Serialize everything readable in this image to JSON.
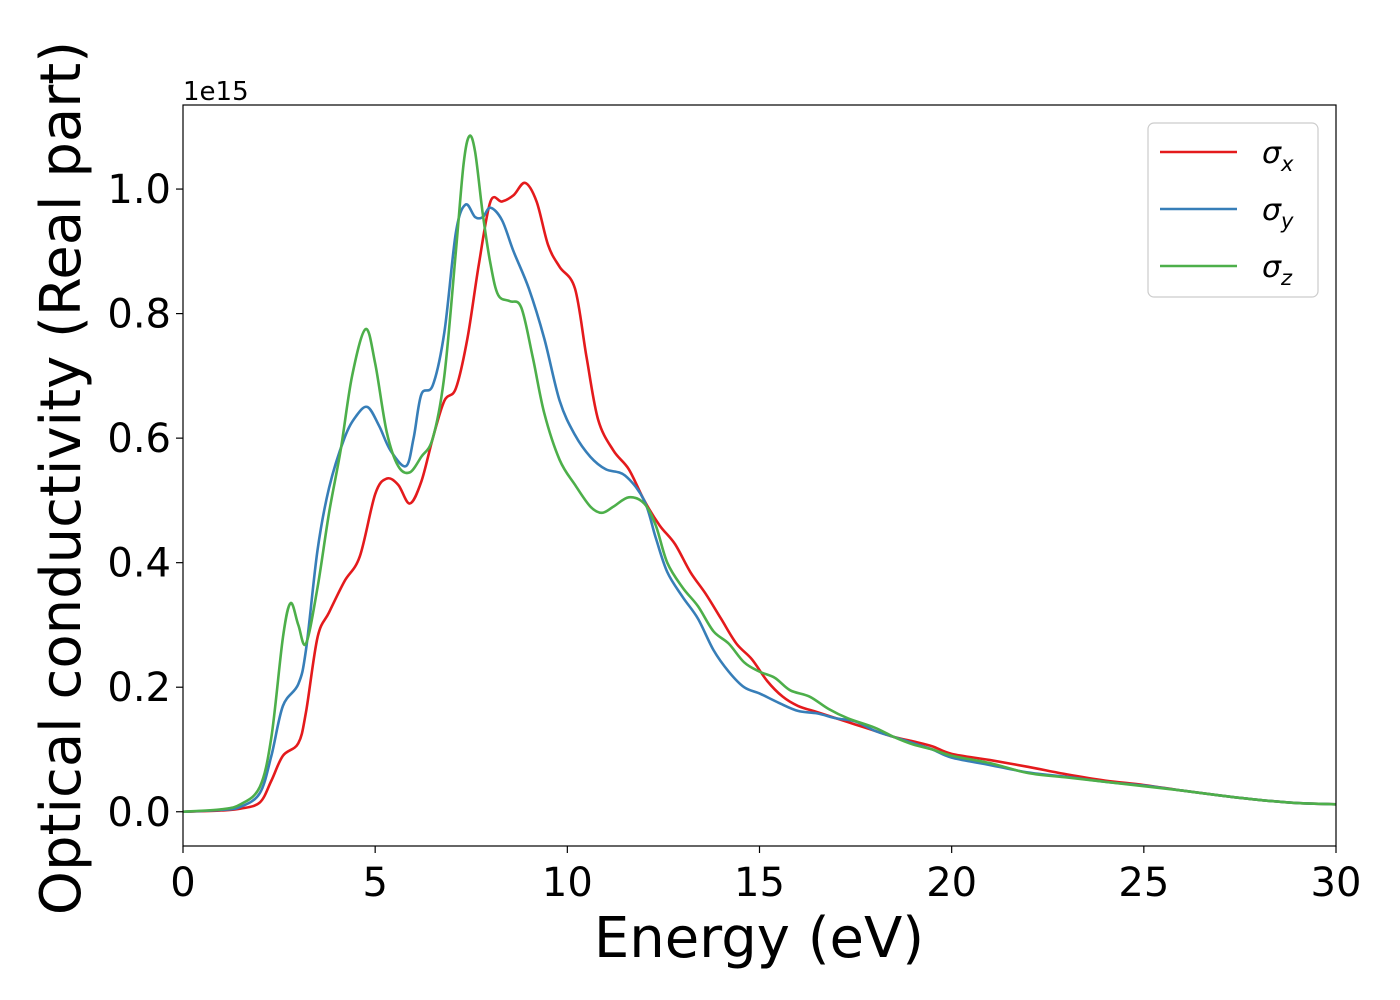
{
  "chart_data": {
    "type": "line",
    "title": "",
    "xlabel": "Energy (eV)",
    "ylabel": "Optical conductivity (Real part)",
    "y_offset_text": "1e15",
    "xlim": [
      0,
      30
    ],
    "ylim": [
      -0.055,
      1.135
    ],
    "xticks": [
      0,
      5,
      10,
      15,
      20,
      25,
      30
    ],
    "xtick_labels": [
      "0",
      "5",
      "10",
      "15",
      "20",
      "25",
      "30"
    ],
    "yticks": [
      0.0,
      0.2,
      0.4,
      0.6,
      0.8,
      1.0
    ],
    "ytick_labels": [
      "0.0",
      "0.2",
      "0.4",
      "0.6",
      "0.8",
      "1.0"
    ],
    "grid": false,
    "legend_position": "top-right",
    "series": [
      {
        "name": "σx",
        "legend_symbol": "σ",
        "legend_subscript": "x",
        "color": "#e41a1c",
        "points": [
          [
            0,
            0
          ],
          [
            1,
            0.002
          ],
          [
            1.5,
            0.005
          ],
          [
            2,
            0.015
          ],
          [
            2.3,
            0.05
          ],
          [
            2.6,
            0.09
          ],
          [
            3.0,
            0.11
          ],
          [
            3.2,
            0.16
          ],
          [
            3.5,
            0.28
          ],
          [
            3.8,
            0.32
          ],
          [
            4.2,
            0.37
          ],
          [
            4.6,
            0.41
          ],
          [
            5.0,
            0.51
          ],
          [
            5.3,
            0.535
          ],
          [
            5.6,
            0.525
          ],
          [
            5.9,
            0.495
          ],
          [
            6.2,
            0.53
          ],
          [
            6.5,
            0.6
          ],
          [
            6.8,
            0.66
          ],
          [
            7.1,
            0.68
          ],
          [
            7.4,
            0.76
          ],
          [
            7.7,
            0.88
          ],
          [
            8.0,
            0.98
          ],
          [
            8.3,
            0.98
          ],
          [
            8.6,
            0.99
          ],
          [
            8.9,
            1.01
          ],
          [
            9.2,
            0.98
          ],
          [
            9.5,
            0.91
          ],
          [
            9.8,
            0.875
          ],
          [
            10.2,
            0.84
          ],
          [
            10.5,
            0.73
          ],
          [
            10.8,
            0.63
          ],
          [
            11.2,
            0.58
          ],
          [
            11.6,
            0.55
          ],
          [
            12.0,
            0.5
          ],
          [
            12.4,
            0.46
          ],
          [
            12.8,
            0.43
          ],
          [
            13.2,
            0.385
          ],
          [
            13.6,
            0.35
          ],
          [
            14.0,
            0.31
          ],
          [
            14.4,
            0.27
          ],
          [
            14.8,
            0.245
          ],
          [
            15.2,
            0.21
          ],
          [
            15.6,
            0.185
          ],
          [
            16.0,
            0.17
          ],
          [
            16.5,
            0.16
          ],
          [
            17.0,
            0.15
          ],
          [
            17.5,
            0.14
          ],
          [
            18.0,
            0.13
          ],
          [
            18.5,
            0.12
          ],
          [
            19.0,
            0.113
          ],
          [
            19.5,
            0.105
          ],
          [
            20.0,
            0.093
          ],
          [
            21.0,
            0.083
          ],
          [
            22.0,
            0.072
          ],
          [
            23.0,
            0.06
          ],
          [
            24.0,
            0.05
          ],
          [
            25.0,
            0.043
          ],
          [
            26.0,
            0.034
          ],
          [
            27.0,
            0.026
          ],
          [
            28.0,
            0.019
          ],
          [
            29.0,
            0.014
          ],
          [
            30.0,
            0.012
          ]
        ]
      },
      {
        "name": "σy",
        "legend_symbol": "σ",
        "legend_subscript": "y",
        "color": "#377eb8",
        "points": [
          [
            0,
            0
          ],
          [
            1,
            0.003
          ],
          [
            1.5,
            0.008
          ],
          [
            2,
            0.03
          ],
          [
            2.3,
            0.09
          ],
          [
            2.6,
            0.17
          ],
          [
            3.0,
            0.205
          ],
          [
            3.2,
            0.26
          ],
          [
            3.5,
            0.42
          ],
          [
            3.8,
            0.52
          ],
          [
            4.2,
            0.6
          ],
          [
            4.5,
            0.635
          ],
          [
            4.8,
            0.65
          ],
          [
            5.1,
            0.62
          ],
          [
            5.4,
            0.58
          ],
          [
            5.8,
            0.555
          ],
          [
            6.0,
            0.6
          ],
          [
            6.2,
            0.67
          ],
          [
            6.5,
            0.685
          ],
          [
            6.8,
            0.77
          ],
          [
            7.1,
            0.93
          ],
          [
            7.35,
            0.975
          ],
          [
            7.6,
            0.955
          ],
          [
            7.8,
            0.955
          ],
          [
            8.0,
            0.97
          ],
          [
            8.3,
            0.95
          ],
          [
            8.6,
            0.9
          ],
          [
            9.0,
            0.84
          ],
          [
            9.4,
            0.76
          ],
          [
            9.8,
            0.66
          ],
          [
            10.2,
            0.605
          ],
          [
            10.6,
            0.57
          ],
          [
            11.0,
            0.55
          ],
          [
            11.5,
            0.54
          ],
          [
            12.0,
            0.5
          ],
          [
            12.3,
            0.44
          ],
          [
            12.6,
            0.385
          ],
          [
            13.0,
            0.345
          ],
          [
            13.4,
            0.31
          ],
          [
            13.8,
            0.26
          ],
          [
            14.2,
            0.225
          ],
          [
            14.6,
            0.2
          ],
          [
            15.0,
            0.19
          ],
          [
            15.5,
            0.175
          ],
          [
            16.0,
            0.162
          ],
          [
            16.5,
            0.158
          ],
          [
            17.0,
            0.15
          ],
          [
            17.5,
            0.145
          ],
          [
            18.0,
            0.13
          ],
          [
            18.5,
            0.12
          ],
          [
            19.0,
            0.11
          ],
          [
            19.5,
            0.1
          ],
          [
            20.0,
            0.087
          ],
          [
            21.0,
            0.075
          ],
          [
            22.0,
            0.063
          ],
          [
            23.0,
            0.056
          ],
          [
            24.0,
            0.048
          ],
          [
            25.0,
            0.042
          ],
          [
            26.0,
            0.034
          ],
          [
            27.0,
            0.026
          ],
          [
            28.0,
            0.019
          ],
          [
            29.0,
            0.014
          ],
          [
            30.0,
            0.012
          ]
        ]
      },
      {
        "name": "σz",
        "legend_symbol": "σ",
        "legend_subscript": "z",
        "color": "#4daf4a",
        "points": [
          [
            0,
            0
          ],
          [
            1,
            0.004
          ],
          [
            1.5,
            0.012
          ],
          [
            2,
            0.04
          ],
          [
            2.3,
            0.12
          ],
          [
            2.6,
            0.28
          ],
          [
            2.8,
            0.335
          ],
          [
            3.0,
            0.3
          ],
          [
            3.2,
            0.27
          ],
          [
            3.5,
            0.36
          ],
          [
            3.8,
            0.48
          ],
          [
            4.1,
            0.58
          ],
          [
            4.4,
            0.7
          ],
          [
            4.75,
            0.775
          ],
          [
            5.0,
            0.72
          ],
          [
            5.3,
            0.61
          ],
          [
            5.6,
            0.555
          ],
          [
            5.9,
            0.545
          ],
          [
            6.2,
            0.57
          ],
          [
            6.5,
            0.6
          ],
          [
            6.8,
            0.7
          ],
          [
            7.1,
            0.9
          ],
          [
            7.3,
            1.04
          ],
          [
            7.45,
            1.085
          ],
          [
            7.6,
            1.06
          ],
          [
            7.8,
            0.96
          ],
          [
            8.0,
            0.88
          ],
          [
            8.2,
            0.83
          ],
          [
            8.5,
            0.82
          ],
          [
            8.8,
            0.81
          ],
          [
            9.1,
            0.73
          ],
          [
            9.4,
            0.64
          ],
          [
            9.8,
            0.565
          ],
          [
            10.2,
            0.525
          ],
          [
            10.6,
            0.49
          ],
          [
            10.9,
            0.48
          ],
          [
            11.2,
            0.49
          ],
          [
            11.6,
            0.505
          ],
          [
            12.0,
            0.495
          ],
          [
            12.3,
            0.46
          ],
          [
            12.6,
            0.4
          ],
          [
            13.0,
            0.36
          ],
          [
            13.4,
            0.33
          ],
          [
            13.8,
            0.29
          ],
          [
            14.2,
            0.27
          ],
          [
            14.6,
            0.24
          ],
          [
            15.0,
            0.225
          ],
          [
            15.4,
            0.215
          ],
          [
            15.8,
            0.195
          ],
          [
            16.3,
            0.185
          ],
          [
            16.8,
            0.165
          ],
          [
            17.3,
            0.15
          ],
          [
            18.0,
            0.135
          ],
          [
            18.5,
            0.12
          ],
          [
            19.0,
            0.108
          ],
          [
            19.5,
            0.1
          ],
          [
            20.0,
            0.09
          ],
          [
            21.0,
            0.078
          ],
          [
            22.0,
            0.062
          ],
          [
            23.0,
            0.055
          ],
          [
            24.0,
            0.048
          ],
          [
            25.0,
            0.041
          ],
          [
            26.0,
            0.034
          ],
          [
            27.0,
            0.026
          ],
          [
            28.0,
            0.019
          ],
          [
            29.0,
            0.014
          ],
          [
            30.0,
            0.012
          ]
        ]
      }
    ]
  }
}
